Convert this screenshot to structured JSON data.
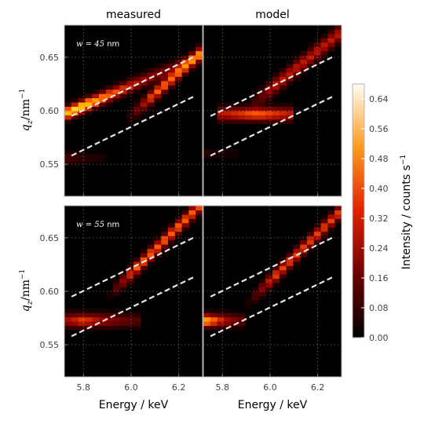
{
  "chart_data": {
    "type": "heatmap",
    "columns": [
      "measured",
      "model"
    ],
    "panels": [
      {
        "row": 0,
        "annotation_var": "w",
        "annotation_eq": " = 45 ",
        "annotation_unit": "nm",
        "measured": {
          "lines": [
            {
              "center": 0.597,
              "slope": 0.095,
              "amp": 0.58,
              "width": 0.0055,
              "x0": 5.72,
              "x1": 6.3,
              "peak_x": 5.78,
              "decay": 0.9
            },
            {
              "center": 0.556,
              "slope": 0.0,
              "amp": 0.1,
              "width": 0.005,
              "x0": 5.72,
              "x1": 5.9,
              "peak_x": 5.72,
              "decay": 2.0
            }
          ],
          "ridge": {
            "a": 0.552,
            "b": 0.2,
            "x0": 5.98,
            "x1": 6.3,
            "amp": 0.35,
            "width": 0.006
          }
        },
        "model": {
          "lines": [
            {
              "center": 0.597,
              "slope": 0.0,
              "amp": 0.34,
              "width": 0.006,
              "x0": 5.78,
              "x1": 6.1,
              "peak_x": 5.95,
              "decay": 0.6
            },
            {
              "center": 0.56,
              "slope": 0.0,
              "amp": 0.05,
              "width": 0.005,
              "x0": 5.72,
              "x1": 5.9,
              "peak_x": 5.72,
              "decay": 2.0
            }
          ],
          "ridge": {
            "a": 0.562,
            "b": 0.18,
            "x0": 5.9,
            "x1": 6.3,
            "amp": 0.24,
            "width": 0.007
          }
        },
        "dashed": [
          {
            "x": [
              5.75,
              6.27
            ],
            "y": [
              0.595,
              0.651
            ]
          },
          {
            "x": [
              5.75,
              6.27
            ],
            "y": [
              0.558,
              0.614
            ]
          }
        ]
      },
      {
        "row": 1,
        "annotation_var": "w",
        "annotation_eq": " = 55 ",
        "annotation_unit": "nm",
        "measured": {
          "lines": [
            {
              "center": 0.573,
              "slope": 0.0,
              "amp": 0.3,
              "width": 0.006,
              "x0": 5.72,
              "x1": 6.05,
              "peak_x": 5.8,
              "decay": 1.2
            }
          ],
          "ridge": {
            "a": 0.555,
            "b": 0.22,
            "x0": 5.9,
            "x1": 6.3,
            "amp": 0.34,
            "width": 0.006
          }
        },
        "model": {
          "lines": [
            {
              "center": 0.573,
              "slope": 0.0,
              "amp": 0.52,
              "width": 0.0055,
              "x0": 5.72,
              "x1": 5.9,
              "peak_x": 5.72,
              "decay": 2.2
            }
          ],
          "ridge": {
            "a": 0.548,
            "b": 0.22,
            "x0": 5.9,
            "x1": 6.3,
            "amp": 0.3,
            "width": 0.006
          }
        },
        "dashed": [
          {
            "x": [
              5.75,
              6.27
            ],
            "y": [
              0.595,
              0.651
            ]
          },
          {
            "x": [
              5.75,
              6.27
            ],
            "y": [
              0.558,
              0.614
            ]
          }
        ]
      }
    ],
    "x_range": [
      5.72,
      6.3
    ],
    "y_range": [
      0.52,
      0.68
    ],
    "x_ticks": [
      5.8,
      6.0,
      6.2
    ],
    "x_tick_labels": [
      "5.8",
      "6.0",
      "6.2"
    ],
    "y_ticks": [
      0.55,
      0.6,
      0.65
    ],
    "y_tick_labels": [
      "0.55",
      "0.60",
      "0.65"
    ],
    "xlabel": "Energy / keV",
    "ylabel_var": "q",
    "ylabel_sub": "z",
    "ylabel_unit": "/nm",
    "ylabel_exp": "−1",
    "grid": true,
    "colormap": "gist_heat",
    "colorbar": {
      "label": "Intensity / counts s",
      "label_exp": "−1",
      "range": [
        0.0,
        0.68
      ],
      "ticks": [
        0.0,
        0.08,
        0.16,
        0.24,
        0.32,
        0.4,
        0.48,
        0.56,
        0.64
      ],
      "tick_labels": [
        "0.00",
        "0.08",
        "0.16",
        "0.24",
        "0.32",
        "0.40",
        "0.48",
        "0.56",
        "0.64"
      ]
    }
  }
}
